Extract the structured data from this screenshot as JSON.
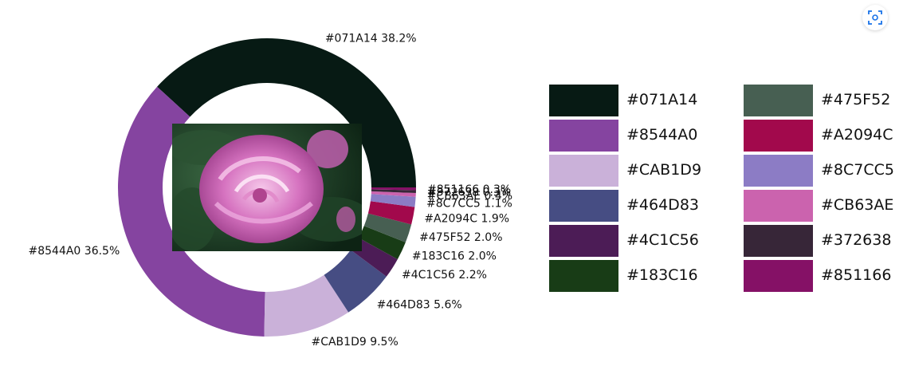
{
  "chart_data": {
    "type": "donut",
    "slices": [
      {
        "name": "#071A14",
        "color": "#071A14",
        "value": 38.2,
        "label": "#071A14 38.2%"
      },
      {
        "name": "#8544A0",
        "color": "#8544A0",
        "value": 36.5,
        "label": "#8544A0 36.5%"
      },
      {
        "name": "#CAB1D9",
        "color": "#CAB1D9",
        "value": 9.5,
        "label": "#CAB1D9 9.5%"
      },
      {
        "name": "#464D83",
        "color": "#464D83",
        "value": 5.6,
        "label": "#464D83 5.6%"
      },
      {
        "name": "#4C1C56",
        "color": "#4C1C56",
        "value": 2.2,
        "label": "#4C1C56 2.2%"
      },
      {
        "name": "#183C16",
        "color": "#183C16",
        "value": 2.0,
        "label": "#183C16 2.0%"
      },
      {
        "name": "#475F52",
        "color": "#475F52",
        "value": 2.0,
        "label": "#475F52 2.0%"
      },
      {
        "name": "#A2094C",
        "color": "#A2094C",
        "value": 1.9,
        "label": "#A2094C 1.9%"
      },
      {
        "name": "#8C7CC5",
        "color": "#8C7CC5",
        "value": 1.1,
        "label": "#8C7CC5 1.1%"
      },
      {
        "name": "#CB63AE",
        "color": "#CB63AE",
        "value": 0.4,
        "label": "#CB63AE 0.4%"
      },
      {
        "name": "#372638",
        "color": "#372638",
        "value": 0.3,
        "label": "#372638 0.3%"
      },
      {
        "name": "#851166",
        "color": "#851166",
        "value": 0.3,
        "label": "#851166 0.3%"
      }
    ],
    "legend": {
      "placement": "right",
      "columns": [
        [
          "#071A14",
          "#8544A0",
          "#CAB1D9",
          "#464D83",
          "#4C1C56",
          "#183C16"
        ],
        [
          "#475F52",
          "#A2094C",
          "#8C7CC5",
          "#CB63AE",
          "#372638",
          "#851166"
        ]
      ]
    }
  },
  "center_image": {
    "icon": "rose-photo"
  },
  "toolbar": {
    "scan_icon": "scan-icon",
    "accent": "#1a73e8"
  }
}
